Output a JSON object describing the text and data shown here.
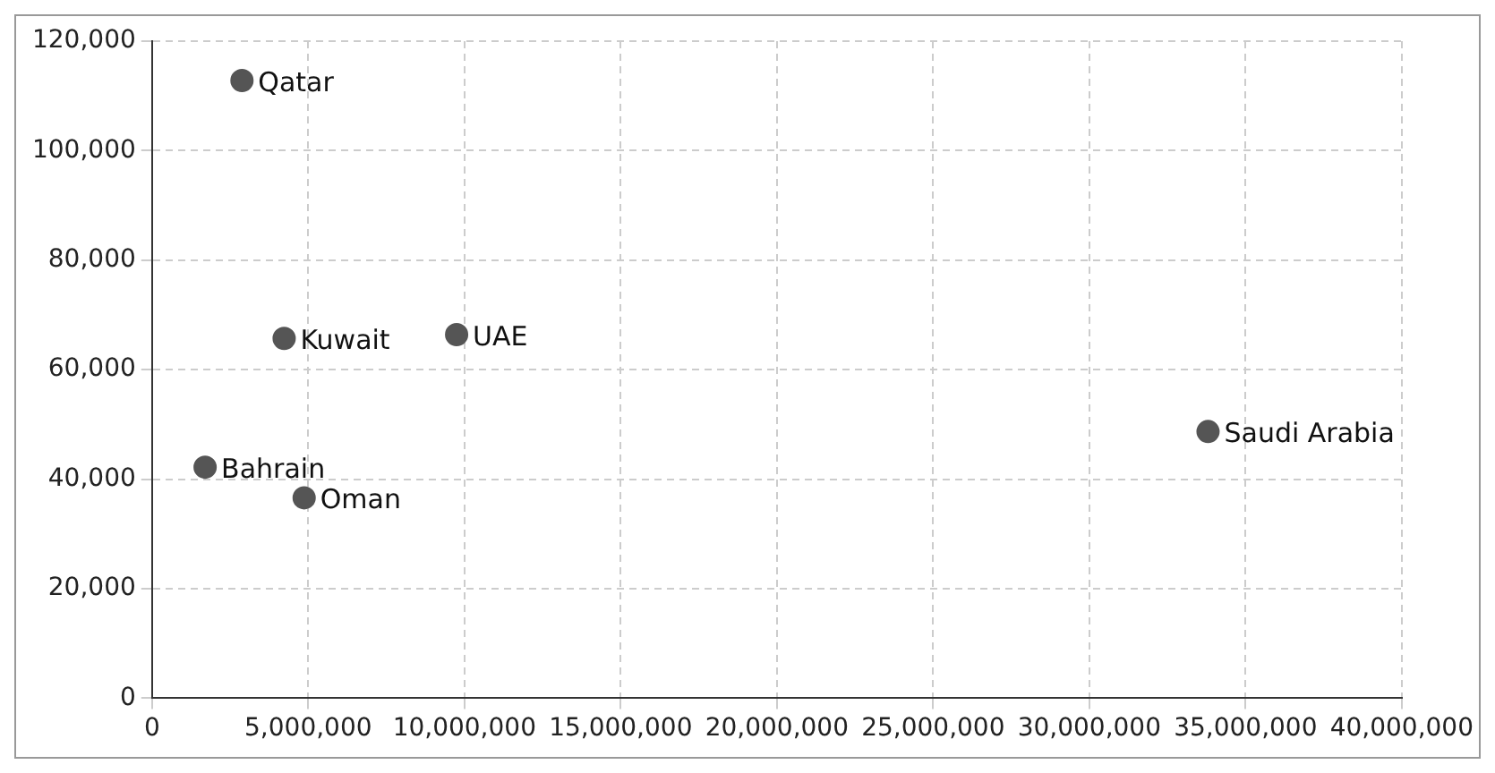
{
  "chart_data": {
    "type": "scatter",
    "x": [
      2880000,
      4230000,
      9750000,
      1700000,
      4870000,
      33800000
    ],
    "series": [
      {
        "color": "#555555",
        "values": [
          112800,
          65700,
          66400,
          42200,
          36600,
          48700
        ]
      }
    ],
    "xlim": [
      0,
      40000000
    ],
    "xticks": [
      0,
      {
        "value": 5000000,
        "label": "5,000,000"
      },
      {
        "value": 10000000,
        "label": "10,000,000"
      },
      {
        "value": 15000000,
        "label": "15,000,000"
      },
      {
        "value": 20000000,
        "label": "20,000,000"
      },
      {
        "value": 25000000,
        "label": "25,000,000"
      },
      {
        "value": 30000000,
        "label": "30,000,000"
      },
      {
        "value": 35000000,
        "label": "35,000,000"
      },
      {
        "value": 40000000,
        "label": "40,000,000"
      }
    ],
    "ylim": [
      0,
      120000
    ],
    "yticks": [
      0,
      {
        "value": 20000,
        "label": "20,000"
      },
      {
        "value": 40000,
        "label": "40,000"
      },
      {
        "value": 60000,
        "label": "60,000"
      },
      {
        "value": 80000,
        "label": "80,000"
      },
      {
        "value": 100000,
        "label": "100,000"
      },
      {
        "value": 120000,
        "label": "120,000"
      }
    ],
    "grid": true,
    "legend": false,
    "marker": "circle",
    "annotations": [
      {
        "text": "Qatar",
        "x": 2880000,
        "y": 112800
      },
      {
        "text": "Kuwait",
        "x": 4230000,
        "y": 65700
      },
      {
        "text": "UAE",
        "x": 9750000,
        "y": 66400
      },
      {
        "text": "Bahrain",
        "x": 1700000,
        "y": 42200
      },
      {
        "text": "Oman",
        "x": 4870000,
        "y": 36600
      },
      {
        "text": "Saudi Arabia",
        "x": 33800000,
        "y": 48700
      }
    ]
  }
}
